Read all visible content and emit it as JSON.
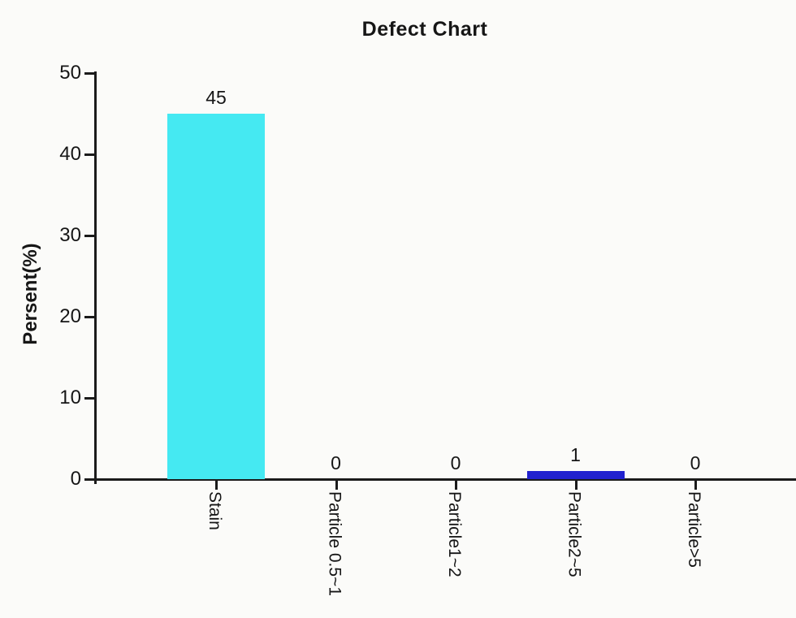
{
  "chart_data": {
    "type": "bar",
    "title": "Defect Chart",
    "ylabel": "Persent(%)",
    "xlabel": "",
    "categories": [
      "Stain",
      "Particle 0.5~1",
      "Particle1~2",
      "Particle2~5",
      "Particle>5"
    ],
    "values": [
      45,
      0,
      0,
      1,
      0
    ],
    "value_labels": [
      "45",
      "0",
      "0",
      "1",
      "0"
    ],
    "bar_colors": [
      "#45e9f2",
      null,
      null,
      "#2121ce",
      null
    ],
    "ylim": [
      0,
      50
    ],
    "yticks": [
      0,
      10,
      20,
      30,
      40,
      50
    ],
    "grid": false,
    "legend_position": "none"
  },
  "colors": {
    "axis": "#1b1b1b",
    "text": "#161616",
    "background": "#fbfbf9",
    "bar_cyan": "#45e9f2",
    "bar_blue": "#2121ce"
  }
}
